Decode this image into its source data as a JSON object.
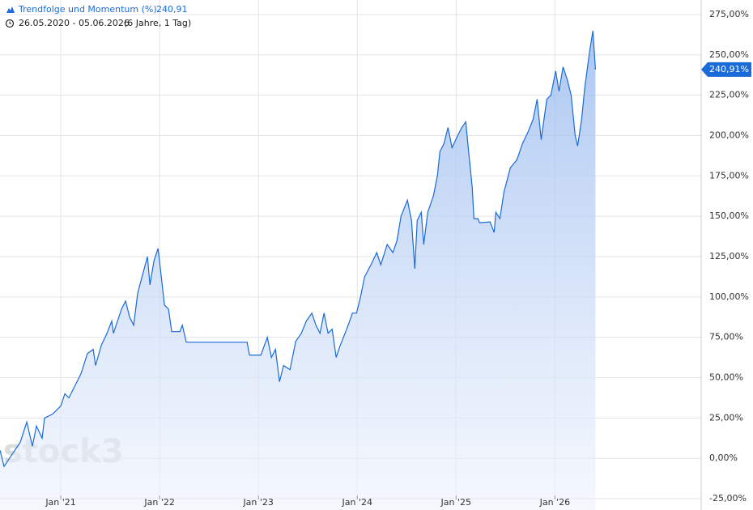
{
  "chart_data": {
    "type": "area",
    "title": "Trendfolge und Momentum (%)",
    "title_value": "240,91",
    "date_range": "26.05.2020 - 05.06.2026",
    "period": "(6 Jahre, 1 Tag)",
    "watermark": "stock3",
    "x": [
      2020.385,
      2020.426,
      2020.508,
      2020.59,
      2020.656,
      2020.713,
      2020.754,
      2020.811,
      2020.836,
      2020.918,
      2021.0,
      2021.041,
      2021.082,
      2021.164,
      2021.205,
      2021.27,
      2021.328,
      2021.352,
      2021.41,
      2021.467,
      2021.516,
      2021.533,
      2021.615,
      2021.656,
      2021.697,
      2021.738,
      2021.779,
      2021.844,
      2021.877,
      2021.902,
      2021.943,
      2021.984,
      2022.008,
      2022.049,
      2022.09,
      2022.123,
      2022.205,
      2022.23,
      2022.27,
      2022.885,
      2022.91,
      2023.025,
      2023.09,
      2023.131,
      2023.172,
      2023.213,
      2023.254,
      2023.32,
      2023.377,
      2023.434,
      2023.484,
      2023.541,
      2023.582,
      2023.623,
      2023.664,
      2023.705,
      2023.746,
      2023.787,
      2023.828,
      2023.893,
      2023.951,
      2023.992,
      2024.033,
      2024.074,
      2024.139,
      2024.197,
      2024.238,
      2024.303,
      2024.361,
      2024.402,
      2024.443,
      2024.508,
      2024.549,
      2024.582,
      2024.607,
      2024.648,
      2024.672,
      2024.713,
      2024.77,
      2024.811,
      2024.836,
      2024.877,
      2024.918,
      2024.959,
      2025.016,
      2025.057,
      2025.098,
      2025.123,
      2025.164,
      2025.18,
      2025.221,
      2025.238,
      2025.344,
      2025.385,
      2025.402,
      2025.443,
      2025.484,
      2025.549,
      2025.615,
      2025.672,
      2025.73,
      2025.779,
      2025.82,
      2025.861,
      2025.918,
      2025.959,
      2026.008,
      2026.041,
      2026.082,
      2026.123,
      2026.164,
      2026.205,
      2026.23,
      2026.27,
      2026.303,
      2026.352,
      2026.385,
      2026.41
    ],
    "series": [
      {
        "name": "Trendfolge und Momentum (%)",
        "color": "#1a6ad8",
        "values": [
          5,
          -5,
          2.5,
          10,
          22.5,
          7.5,
          20,
          12.5,
          25,
          27.5,
          32.5,
          40,
          37.5,
          47.5,
          52.5,
          65,
          67.5,
          57.5,
          70,
          77.5,
          85,
          77.5,
          92.5,
          97.5,
          87.5,
          82.5,
          102.5,
          117.5,
          125,
          107.5,
          122.5,
          130,
          117.5,
          95,
          92.5,
          78.5,
          78.5,
          82.5,
          72,
          72,
          64,
          64,
          75,
          62.5,
          67.5,
          47.5,
          57.5,
          55,
          72.5,
          77.5,
          85,
          90,
          82.5,
          77.5,
          90,
          77.5,
          80,
          62.5,
          70,
          80,
          90,
          90,
          100,
          112.5,
          120,
          127.5,
          120,
          132.5,
          127.5,
          135,
          150,
          160,
          147.5,
          117.5,
          147.5,
          152.5,
          132.5,
          152.5,
          162.5,
          175,
          190,
          195,
          205,
          192.5,
          200,
          205,
          208.5,
          192.5,
          167.5,
          148.5,
          148.5,
          146,
          146.5,
          140,
          152.5,
          148.5,
          165,
          180,
          185,
          195,
          202.5,
          210,
          222.5,
          197.5,
          222.5,
          225,
          240,
          227.5,
          242.5,
          235,
          225,
          200,
          193.5,
          210,
          230,
          252.5,
          265,
          240.91
        ]
      }
    ],
    "last_value": {
      "value": 240.91,
      "label": "240,91%"
    },
    "xlim": [
      2020.385,
      2027.48
    ],
    "xticks": [
      {
        "value": 2021,
        "label": "Jan '21"
      },
      {
        "value": 2022,
        "label": "Jan '22"
      },
      {
        "value": 2023,
        "label": "Jan '23"
      },
      {
        "value": 2024,
        "label": "Jan '24"
      },
      {
        "value": 2025,
        "label": "Jan '25"
      },
      {
        "value": 2026,
        "label": "Jan '26"
      }
    ],
    "ylim": [
      -32,
      284
    ],
    "yticks": [
      {
        "value": -25,
        "label": "-25,00%"
      },
      {
        "value": 0,
        "label": "0,00%"
      },
      {
        "value": 25,
        "label": "25,00%"
      },
      {
        "value": 50,
        "label": "50,00%"
      },
      {
        "value": 75,
        "label": "75,00%"
      },
      {
        "value": 100,
        "label": "100,00%"
      },
      {
        "value": 125,
        "label": "125,00%"
      },
      {
        "value": 150,
        "label": "150,00%"
      },
      {
        "value": 175,
        "label": "175,00%"
      },
      {
        "value": 200,
        "label": "200,00%"
      },
      {
        "value": 225,
        "label": "225,00%"
      },
      {
        "value": 250,
        "label": "250,00%"
      },
      {
        "value": 275,
        "label": "275,00%"
      }
    ],
    "grid": true
  }
}
